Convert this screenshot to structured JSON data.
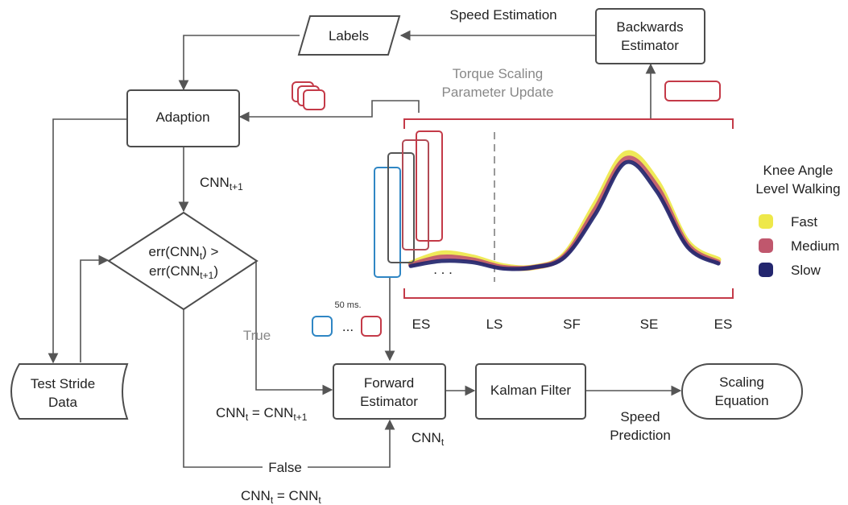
{
  "nodes": {
    "labels": "Labels",
    "backwards_estimator": [
      "Backwards",
      "Estimator"
    ],
    "adaption": "Adaption",
    "decision": {
      "line1_a": "err(CNN",
      "line1_sub": "t",
      "line1_b": ") >",
      "line2_a": "err(CNN",
      "line2_sub": "t+1",
      "line2_b": ")"
    },
    "test_stride_data": [
      "Test Stride",
      "Data"
    ],
    "forward_estimator": [
      "Forward",
      "Estimator"
    ],
    "kalman_filter": "Kalman Filter",
    "scaling_equation": [
      "Scaling",
      "Equation"
    ]
  },
  "edge_labels": {
    "speed_estimation": "Speed Estimation",
    "torque_scaling": [
      "Torque Scaling",
      "Parameter Update"
    ],
    "cnn_next": {
      "base": "CNN",
      "sub": "t+1"
    },
    "true": "True",
    "false": "False",
    "speed_prediction": [
      "Speed",
      "Prediction"
    ],
    "cnn_t_label": {
      "base": "CNN",
      "sub": "t"
    },
    "assign_true": {
      "a": "CNN",
      "a_sub": "t",
      "eq": " = CNN",
      "b_sub": "t+1"
    },
    "assign_false": {
      "a": "CNN",
      "a_sub": "t",
      "eq": " = CNN",
      "b_sub": "t"
    },
    "window_step": "50 ms.",
    "ellipsis": "...",
    "dots": ". . ."
  },
  "legend": {
    "title": [
      "Knee Angle",
      "Level Walking"
    ],
    "items": [
      {
        "label": "Fast",
        "color": "#eee84a"
      },
      {
        "label": "Medium",
        "color": "#c0576d"
      },
      {
        "label": "Slow",
        "color": "#23266e"
      }
    ]
  },
  "chart_data": {
    "type": "line",
    "title": "",
    "xlabel": "",
    "ylabel": "",
    "x_ticks": [
      "ES",
      "LS",
      "SF",
      "SE",
      "ES"
    ],
    "x": [
      0,
      10,
      20,
      30,
      40,
      50,
      60,
      70,
      80,
      90,
      100
    ],
    "series": [
      {
        "name": "Fast",
        "color": "#eee84a",
        "values": [
          5,
          13,
          10,
          3,
          2,
          12,
          52,
          92,
          70,
          22,
          8
        ]
      },
      {
        "name": "Medium",
        "color": "#c0576d",
        "values": [
          4,
          10,
          8,
          2,
          2,
          11,
          48,
          88,
          66,
          20,
          6
        ]
      },
      {
        "name": "Slow",
        "color": "#23266e",
        "values": [
          3,
          7,
          6,
          1,
          2,
          10,
          44,
          85,
          62,
          18,
          5
        ]
      }
    ],
    "ylim": [
      0,
      100
    ],
    "grid": false,
    "legend": "right"
  },
  "colors": {
    "accent_red": "#c43a48",
    "accent_blue": "#2f86c4",
    "box_stroke": "#4d4d4d",
    "edge": "#555555",
    "divider": "#999999"
  }
}
